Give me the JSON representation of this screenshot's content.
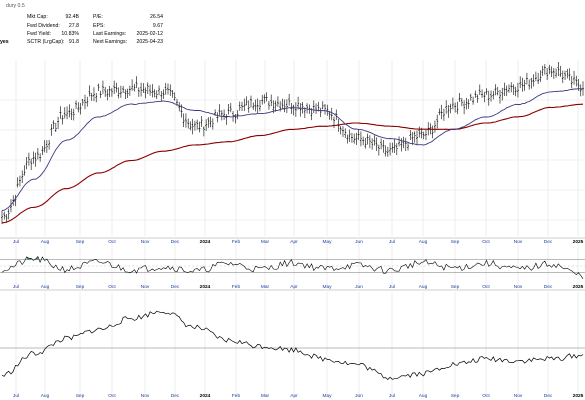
{
  "header": {
    "subtitle": "dury 0.5",
    "left_label": "yes",
    "stats_left": [
      {
        "label": "Mkt Cap:",
        "value": "92.4B"
      },
      {
        "label": "Fwd Dividend:",
        "value": "27.8"
      },
      {
        "label": "Fwd Yield:",
        "value": "10.83%"
      },
      {
        "label": "SCTR (LrgCap):",
        "value": "91.8"
      }
    ],
    "stats_right": [
      {
        "label": "P/E:",
        "value": "26.54"
      },
      {
        "label": "EPS:",
        "value": "9.67"
      },
      {
        "label": "Last Earnings:",
        "value": "2025-02-12"
      },
      {
        "label": "Next Earnings:",
        "value": "2025-04-23"
      }
    ]
  },
  "colors": {
    "price": "#000000",
    "ma_short": "#3a3a80",
    "ma_long": "#8b0000",
    "osc_fill": "#2e8b57",
    "grid": "#e3e3e3",
    "axis_text": "#1a3aa0",
    "bold_axis_text": "#000000"
  },
  "chart_data": [
    {
      "type": "line",
      "panel": "price",
      "x_tick_labels": [
        "Jul",
        "Aug",
        "Sep",
        "Oct",
        "Nov",
        "Dec",
        "2024",
        "Feb",
        "Mar",
        "Apr",
        "May",
        "Jun",
        "Jul",
        "Aug",
        "Sep",
        "Oct",
        "Nov",
        "Dec",
        "2025"
      ],
      "bold_ticks": [
        "2024",
        "2025"
      ],
      "x": [
        "Jul",
        "Aug",
        "Sep",
        "Oct",
        "Nov",
        "Dec",
        "2024",
        "Feb",
        "Mar",
        "Apr",
        "May",
        "Jun",
        "Jul",
        "Aug",
        "Sep",
        "Oct",
        "Nov",
        "Dec",
        "2025"
      ],
      "series": [
        {
          "style": "ohlc-close",
          "values": [
            0.06,
            0.44,
            0.72,
            0.86,
            0.88,
            0.86,
            0.64,
            0.72,
            0.8,
            0.78,
            0.74,
            0.56,
            0.48,
            0.58,
            0.78,
            0.84,
            0.9,
            1.0,
            0.9
          ]
        },
        {
          "style": "ma-short",
          "values": [
            0.1,
            0.3,
            0.55,
            0.7,
            0.78,
            0.8,
            0.74,
            0.7,
            0.72,
            0.76,
            0.74,
            0.62,
            0.56,
            0.52,
            0.62,
            0.7,
            0.78,
            0.86,
            0.88
          ]
        },
        {
          "style": "ma-long",
          "values": [
            0.02,
            0.12,
            0.24,
            0.34,
            0.42,
            0.48,
            0.52,
            0.54,
            0.58,
            0.62,
            0.64,
            0.66,
            0.64,
            0.62,
            0.62,
            0.66,
            0.7,
            0.76,
            0.78
          ]
        }
      ],
      "ylim": [
        0,
        1
      ]
    },
    {
      "type": "line",
      "panel": "oscillator",
      "x": [
        "Jul",
        "Aug",
        "Sep",
        "Oct",
        "Nov",
        "Dec",
        "2024",
        "Feb",
        "Mar",
        "Apr",
        "May",
        "Jun",
        "Jul",
        "Aug",
        "Sep",
        "Oct",
        "Nov",
        "Dec",
        "2025"
      ],
      "values": [
        0.4,
        0.72,
        0.4,
        0.62,
        0.38,
        0.48,
        0.34,
        0.58,
        0.4,
        0.6,
        0.42,
        0.52,
        0.36,
        0.6,
        0.44,
        0.58,
        0.4,
        0.56,
        0.2
      ],
      "upper_band": 0.7,
      "lower_band": 0.3,
      "ylim": [
        0,
        1
      ]
    },
    {
      "type": "line",
      "panel": "lower",
      "x": [
        "Jul",
        "Aug",
        "Sep",
        "Oct",
        "Nov",
        "Dec",
        "2024",
        "Feb",
        "Mar",
        "Apr",
        "May",
        "Jun",
        "Jul",
        "Aug",
        "Sep",
        "Oct",
        "Nov",
        "Dec",
        "2025"
      ],
      "values": [
        0.18,
        0.42,
        0.58,
        0.68,
        0.8,
        0.88,
        0.7,
        0.56,
        0.5,
        0.46,
        0.36,
        0.3,
        0.16,
        0.2,
        0.3,
        0.36,
        0.34,
        0.36,
        0.4
      ],
      "ylim": [
        0,
        1
      ]
    }
  ]
}
